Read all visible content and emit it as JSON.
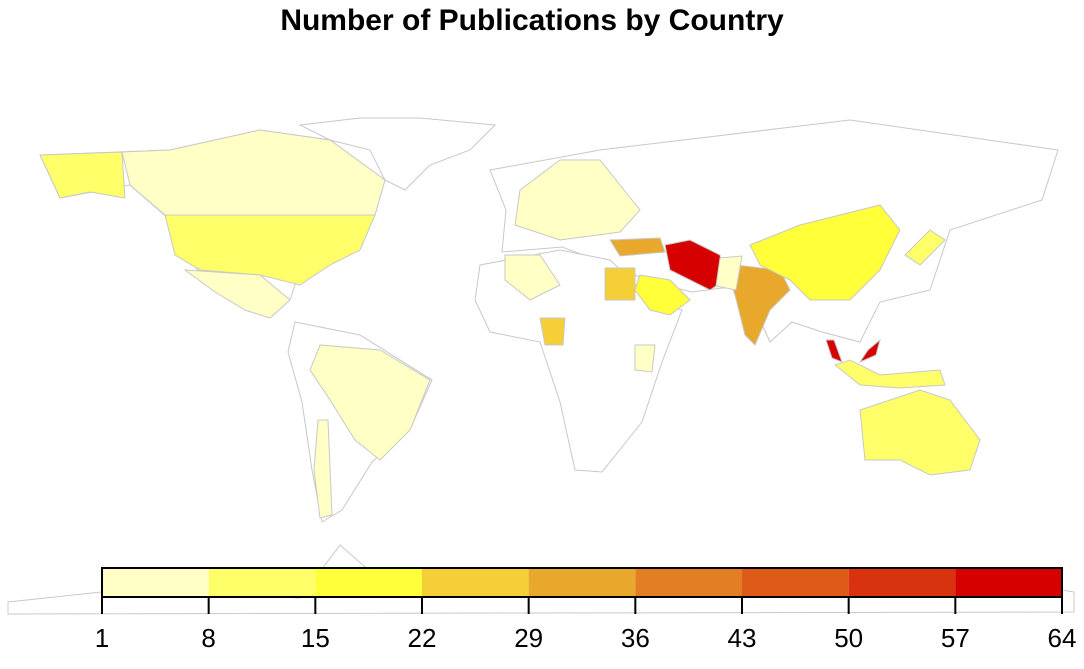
{
  "chart_data": {
    "type": "choropleth",
    "title": "Number of Publications by Country",
    "colorbar_ticks": [
      1,
      8,
      15,
      22,
      29,
      36,
      43,
      50,
      57,
      64
    ],
    "colorbar_colors": [
      "#FFFFC6",
      "#FFFF6A",
      "#FFFF3A",
      "#F4CF35",
      "#E8A82C",
      "#E37E24",
      "#DD5A19",
      "#D8330E",
      "#D70000"
    ],
    "border_color": "#c8c8c8",
    "values": [
      60,
      33,
      33,
      18,
      5,
      18,
      25,
      25,
      4,
      4,
      60,
      12,
      12,
      3,
      12,
      3,
      3,
      3,
      3,
      12
    ]
  }
}
